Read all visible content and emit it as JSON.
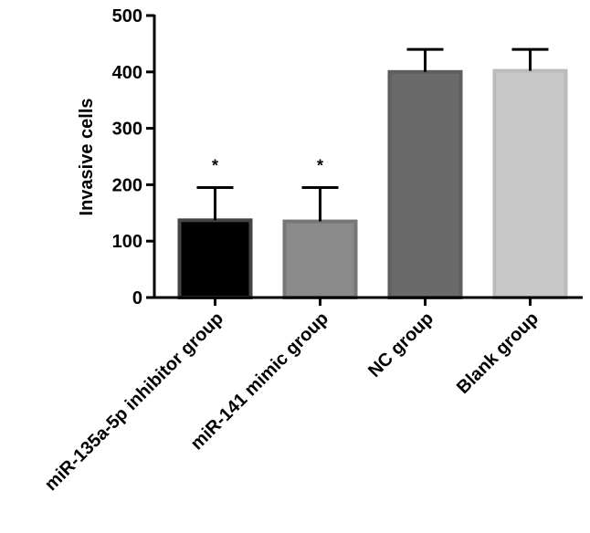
{
  "chart_data": {
    "type": "bar",
    "title": "",
    "xlabel": "",
    "ylabel": "Invasive cells",
    "ylim": [
      0,
      500
    ],
    "yticks": [
      "0",
      "100",
      "200",
      "300",
      "400",
      "500"
    ],
    "grid": false,
    "categories": [
      "miR-135a-5p inhibitor group",
      "miR-141 mimic group",
      "NC group",
      "Blank group"
    ],
    "values": [
      137,
      135,
      400,
      402
    ],
    "errors": [
      58,
      60,
      40,
      38
    ],
    "significance": [
      "*",
      "*",
      "",
      ""
    ],
    "colors": [
      "#000000",
      "#8a8a8a",
      "#6a6a6a",
      "#c8c8c8"
    ],
    "edge_colors": [
      "#444444",
      "#777777",
      "#5e5e5e",
      "#bbbbbb"
    ]
  }
}
